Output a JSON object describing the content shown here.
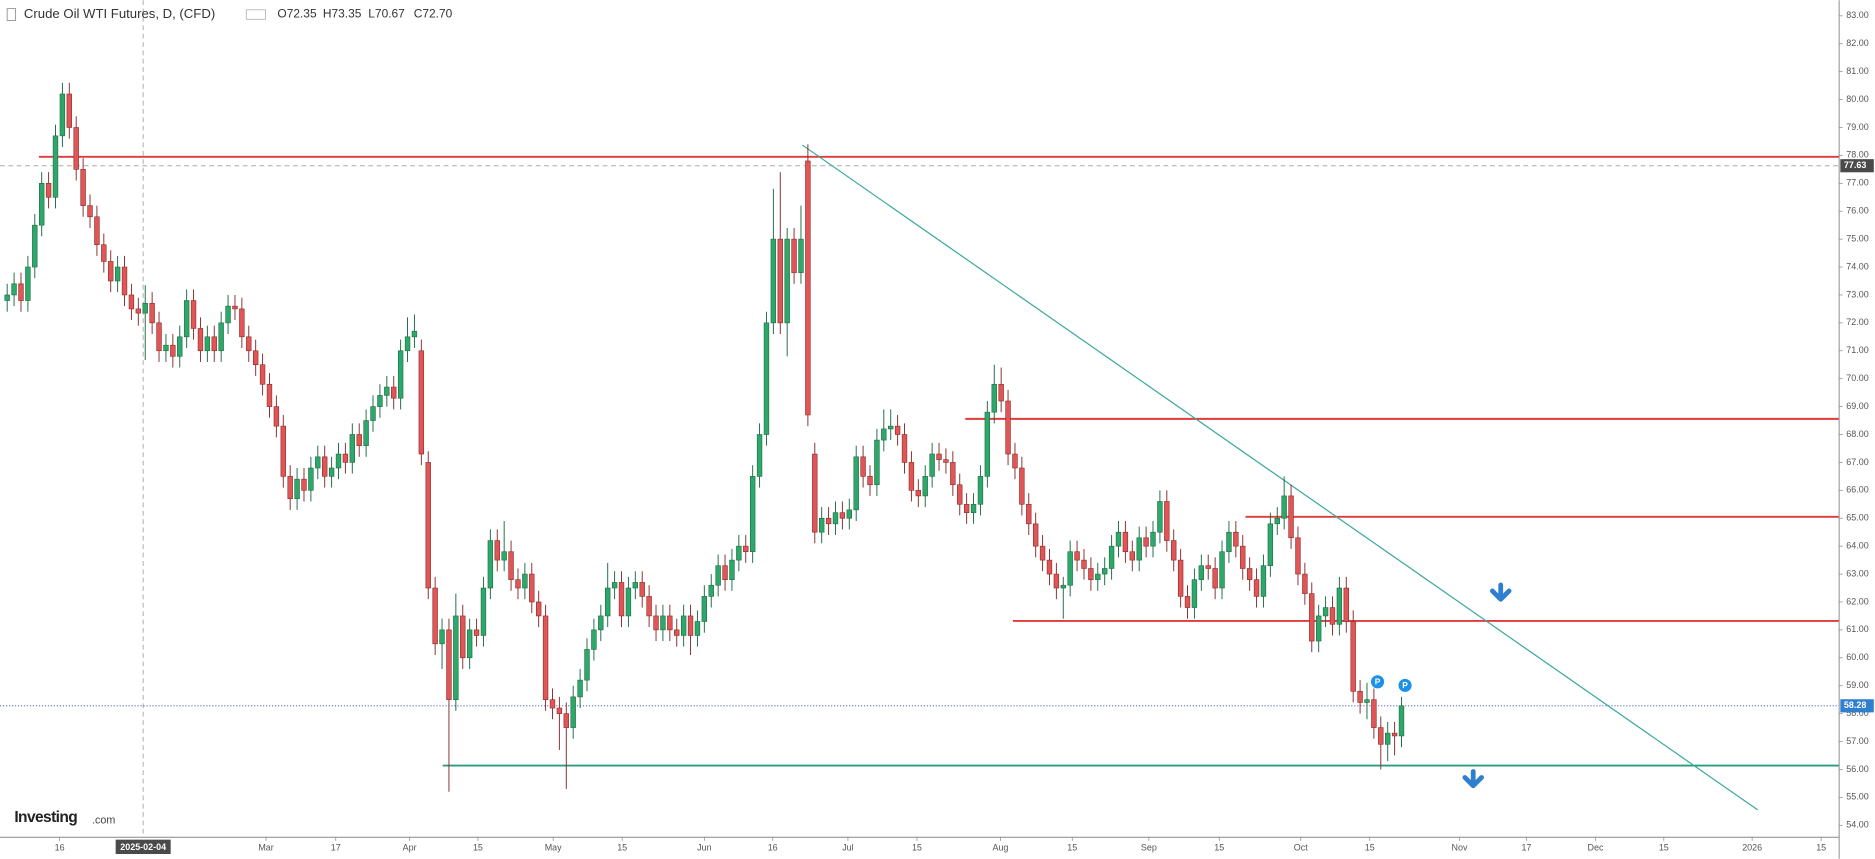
{
  "chart_data": {
    "type": "candlestick",
    "title": "Crude Oil WTI Futures, D, (CFD)",
    "ohlc_labels": [
      "O72.35",
      "H73.35",
      "L70.67",
      "C72.70"
    ],
    "logo": [
      "Investing",
      ".com"
    ],
    "up_color": "#2ea86a",
    "down_color": "#e05555",
    "xlim": [
      -1.04,
      265.4
    ],
    "ylim": [
      53.57,
      83.56
    ],
    "xticks": [
      {
        "value": 7.6,
        "label": "16"
      },
      {
        "value": 37.5,
        "label": "Mar"
      },
      {
        "value": 47.6,
        "label": "17"
      },
      {
        "value": 58.3,
        "label": "Apr"
      },
      {
        "value": 68.2,
        "label": "15"
      },
      {
        "value": 79.1,
        "label": "May"
      },
      {
        "value": 89.1,
        "label": "15"
      },
      {
        "value": 101,
        "label": "Jun"
      },
      {
        "value": 110.9,
        "label": "16"
      },
      {
        "value": 121.8,
        "label": "Jul"
      },
      {
        "value": 131.8,
        "label": "15"
      },
      {
        "value": 143.9,
        "label": "Aug"
      },
      {
        "value": 154.3,
        "label": "15"
      },
      {
        "value": 165.4,
        "label": "Sep"
      },
      {
        "value": 175.6,
        "label": "15"
      },
      {
        "value": 187.4,
        "label": "Oct"
      },
      {
        "value": 197.4,
        "label": "15"
      },
      {
        "value": 210.4,
        "label": "Nov"
      },
      {
        "value": 220.1,
        "label": "17"
      },
      {
        "value": 230.1,
        "label": "Dec"
      },
      {
        "value": 240,
        "label": "15"
      },
      {
        "value": 252.8,
        "label": "2026"
      },
      {
        "value": 262.8,
        "label": "15"
      }
    ],
    "yticks": [
      {
        "value": 54,
        "label": "54.00"
      },
      {
        "value": 55,
        "label": "55.00"
      },
      {
        "value": 56,
        "label": "56.00"
      },
      {
        "value": 57,
        "label": "57.00"
      },
      {
        "value": 58,
        "label": "58.00"
      },
      {
        "value": 59,
        "label": "59.00"
      },
      {
        "value": 60,
        "label": "60.00"
      },
      {
        "value": 61,
        "label": "61.00"
      },
      {
        "value": 62,
        "label": "62.00"
      },
      {
        "value": 63,
        "label": "63.00"
      },
      {
        "value": 64,
        "label": "64.00"
      },
      {
        "value": 65,
        "label": "65.00"
      },
      {
        "value": 66,
        "label": "66.00"
      },
      {
        "value": 67,
        "label": "67.00"
      },
      {
        "value": 68,
        "label": "68.00"
      },
      {
        "value": 69,
        "label": "69.00"
      },
      {
        "value": 70,
        "label": "70.00"
      },
      {
        "value": 71,
        "label": "71.00"
      },
      {
        "value": 72,
        "label": "72.00"
      },
      {
        "value": 73,
        "label": "73.00"
      },
      {
        "value": 74,
        "label": "74.00"
      },
      {
        "value": 75,
        "label": "75.00"
      },
      {
        "value": 76,
        "label": "76.00"
      },
      {
        "value": 77,
        "label": "77.00"
      },
      {
        "value": 78,
        "label": "78.00"
      },
      {
        "value": 79,
        "label": "79.00"
      },
      {
        "value": 80,
        "label": "80.00"
      },
      {
        "value": 81,
        "label": "81.00"
      },
      {
        "value": 82,
        "label": "82.00"
      },
      {
        "value": 83,
        "label": "83.00"
      }
    ],
    "crosshair": {
      "x": 19.7,
      "x_label": "2025-02-04",
      "price": 77.63
    },
    "last_price": 58.28,
    "hlines": [
      {
        "price": 77.95,
        "from": 4.6,
        "color": "#e03a3a"
      },
      {
        "price": 68.56,
        "from": 138.8,
        "color": "#e03a3a"
      },
      {
        "price": 65.05,
        "from": 179.4,
        "color": "#e03a3a"
      },
      {
        "price": 61.32,
        "from": 145.7,
        "color": "#e03a3a"
      },
      {
        "price": 56.14,
        "from": 63.1,
        "color": "#2a9d80"
      }
    ],
    "trendline": {
      "x": [
        115.2,
        253.6
      ],
      "y": [
        78.37,
        54.55
      ],
      "color": "#3aa89a"
    },
    "event_markers": [
      "P",
      "P"
    ],
    "candles": [
      [
        72.8,
        73.4,
        72.4,
        73.0
      ],
      [
        73.0,
        73.8,
        72.6,
        73.4
      ],
      [
        73.4,
        73.8,
        72.4,
        72.8
      ],
      [
        72.8,
        74.4,
        72.4,
        74.0
      ],
      [
        74.0,
        75.9,
        73.6,
        75.5
      ],
      [
        75.5,
        77.4,
        75.1,
        77.0
      ],
      [
        77.0,
        77.4,
        76.1,
        76.5
      ],
      [
        76.5,
        79.1,
        76.1,
        78.7
      ],
      [
        78.7,
        80.6,
        78.3,
        80.2
      ],
      [
        80.2,
        80.6,
        78.6,
        79.0
      ],
      [
        79.0,
        79.4,
        77.1,
        77.5
      ],
      [
        77.5,
        77.9,
        75.8,
        76.2
      ],
      [
        76.2,
        76.6,
        75.4,
        75.8
      ],
      [
        75.8,
        76.2,
        74.4,
        74.8
      ],
      [
        74.8,
        75.2,
        73.8,
        74.2
      ],
      [
        74.2,
        74.6,
        73.1,
        73.5
      ],
      [
        73.5,
        74.4,
        73.1,
        74.0
      ],
      [
        74.0,
        74.4,
        72.6,
        73.0
      ],
      [
        73.0,
        73.4,
        72.1,
        72.5
      ],
      [
        72.5,
        72.9,
        71.9,
        72.35
      ],
      [
        72.35,
        73.35,
        70.67,
        72.7
      ],
      [
        72.7,
        73.1,
        71.6,
        72.0
      ],
      [
        72.0,
        72.4,
        70.6,
        71.0
      ],
      [
        71.0,
        71.6,
        70.6,
        71.2
      ],
      [
        71.2,
        71.6,
        70.4,
        70.8
      ],
      [
        70.8,
        71.9,
        70.4,
        71.5
      ],
      [
        71.5,
        73.2,
        71.1,
        72.8
      ],
      [
        72.8,
        73.2,
        71.4,
        71.8
      ],
      [
        71.8,
        72.2,
        70.6,
        71.0
      ],
      [
        71.0,
        71.9,
        70.6,
        71.5
      ],
      [
        71.5,
        71.9,
        70.6,
        71.0
      ],
      [
        71.0,
        72.4,
        70.6,
        72.0
      ],
      [
        72.0,
        73.0,
        71.6,
        72.6
      ],
      [
        72.6,
        73.0,
        72.1,
        72.5
      ],
      [
        72.5,
        72.9,
        71.1,
        71.5
      ],
      [
        71.5,
        71.9,
        70.6,
        71.0
      ],
      [
        71.0,
        71.4,
        70.1,
        70.5
      ],
      [
        70.5,
        70.9,
        69.4,
        69.8
      ],
      [
        69.8,
        70.2,
        68.6,
        69.0
      ],
      [
        69.0,
        69.4,
        67.9,
        68.3
      ],
      [
        68.3,
        68.7,
        66.1,
        66.5
      ],
      [
        66.5,
        66.9,
        65.3,
        65.7
      ],
      [
        65.7,
        66.8,
        65.3,
        66.4
      ],
      [
        66.4,
        66.8,
        65.6,
        66.0
      ],
      [
        66.0,
        67.2,
        65.6,
        66.8
      ],
      [
        66.8,
        67.6,
        66.4,
        67.2
      ],
      [
        67.2,
        67.6,
        66.1,
        66.5
      ],
      [
        66.5,
        67.2,
        66.1,
        66.8
      ],
      [
        66.8,
        67.7,
        66.4,
        67.3
      ],
      [
        67.3,
        67.7,
        66.6,
        67.0
      ],
      [
        67.0,
        68.4,
        66.6,
        68.0
      ],
      [
        68.0,
        68.4,
        67.2,
        67.6
      ],
      [
        67.6,
        68.9,
        67.2,
        68.5
      ],
      [
        68.5,
        69.4,
        68.1,
        69.0
      ],
      [
        69.0,
        69.8,
        68.6,
        69.4
      ],
      [
        69.4,
        70.1,
        69.0,
        69.7
      ],
      [
        69.7,
        70.1,
        68.9,
        69.3
      ],
      [
        69.3,
        71.4,
        68.9,
        71.0
      ],
      [
        71.0,
        72.2,
        70.6,
        71.5
      ],
      [
        71.5,
        72.3,
        71.1,
        71.7
      ],
      [
        71.0,
        71.4,
        66.9,
        67.3
      ],
      [
        67.0,
        67.4,
        62.1,
        62.5
      ],
      [
        62.5,
        62.9,
        60.1,
        60.5
      ],
      [
        60.5,
        61.4,
        59.6,
        61.0
      ],
      [
        61.0,
        61.4,
        55.2,
        58.5
      ],
      [
        58.5,
        62.3,
        58.1,
        61.5
      ],
      [
        61.5,
        61.9,
        59.6,
        60.0
      ],
      [
        60.0,
        61.4,
        59.6,
        61.0
      ],
      [
        61.0,
        61.4,
        60.4,
        60.8
      ],
      [
        60.8,
        62.9,
        60.4,
        62.5
      ],
      [
        62.5,
        64.6,
        62.1,
        64.2
      ],
      [
        64.2,
        64.6,
        63.1,
        63.5
      ],
      [
        63.5,
        64.9,
        63.1,
        63.8
      ],
      [
        63.8,
        64.2,
        62.4,
        62.8
      ],
      [
        62.8,
        63.2,
        62.1,
        62.5
      ],
      [
        62.5,
        63.4,
        62.1,
        63.0
      ],
      [
        63.0,
        63.4,
        61.6,
        62.0
      ],
      [
        62.0,
        62.4,
        61.1,
        61.5
      ],
      [
        61.5,
        61.9,
        58.1,
        58.5
      ],
      [
        58.5,
        58.9,
        57.8,
        58.2
      ],
      [
        58.2,
        58.6,
        56.7,
        58.0
      ],
      [
        58.0,
        58.4,
        55.3,
        57.5
      ],
      [
        57.5,
        59.0,
        57.1,
        58.6
      ],
      [
        58.6,
        59.6,
        58.2,
        59.2
      ],
      [
        59.2,
        60.7,
        58.8,
        60.3
      ],
      [
        60.3,
        61.4,
        59.9,
        61.0
      ],
      [
        61.0,
        61.9,
        60.6,
        61.5
      ],
      [
        61.5,
        63.4,
        61.1,
        62.5
      ],
      [
        62.5,
        63.1,
        62.1,
        62.7
      ],
      [
        62.7,
        63.1,
        61.1,
        61.5
      ],
      [
        61.5,
        62.9,
        61.1,
        62.5
      ],
      [
        62.5,
        63.1,
        62.1,
        62.7
      ],
      [
        62.7,
        63.1,
        61.8,
        62.2
      ],
      [
        62.2,
        62.6,
        61.1,
        61.5
      ],
      [
        61.5,
        61.9,
        60.6,
        61.0
      ],
      [
        61.0,
        61.9,
        60.6,
        61.5
      ],
      [
        61.5,
        61.9,
        60.6,
        61.0
      ],
      [
        61.0,
        61.4,
        60.4,
        60.8
      ],
      [
        60.8,
        61.9,
        60.4,
        61.5
      ],
      [
        61.5,
        61.9,
        60.1,
        60.8
      ],
      [
        60.8,
        61.7,
        60.4,
        61.3
      ],
      [
        61.3,
        62.6,
        60.9,
        62.2
      ],
      [
        62.2,
        63.0,
        61.8,
        62.6
      ],
      [
        62.6,
        63.7,
        62.2,
        63.3
      ],
      [
        63.3,
        63.7,
        62.4,
        62.8
      ],
      [
        62.8,
        63.9,
        62.4,
        63.5
      ],
      [
        63.5,
        64.4,
        63.1,
        64.0
      ],
      [
        64.0,
        64.4,
        63.4,
        63.8
      ],
      [
        63.8,
        66.9,
        63.4,
        66.5
      ],
      [
        66.5,
        68.4,
        66.1,
        68.0
      ],
      [
        68.0,
        72.4,
        67.6,
        72.0
      ],
      [
        72.0,
        76.8,
        71.6,
        75.0
      ],
      [
        75.0,
        77.4,
        71.6,
        72.0
      ],
      [
        72.0,
        75.4,
        70.8,
        75.0
      ],
      [
        75.0,
        75.4,
        73.4,
        73.8
      ],
      [
        73.8,
        76.2,
        73.4,
        75.0
      ],
      [
        77.8,
        78.4,
        68.3,
        68.7
      ],
      [
        67.3,
        67.7,
        64.1,
        64.5
      ],
      [
        64.5,
        65.4,
        64.1,
        65.0
      ],
      [
        65.0,
        65.4,
        64.4,
        64.8
      ],
      [
        64.8,
        65.6,
        64.4,
        65.2
      ],
      [
        65.2,
        65.6,
        64.6,
        65.0
      ],
      [
        65.0,
        65.7,
        64.6,
        65.3
      ],
      [
        65.3,
        67.6,
        64.9,
        67.2
      ],
      [
        67.2,
        67.6,
        66.1,
        66.5
      ],
      [
        66.5,
        66.9,
        65.8,
        66.2
      ],
      [
        66.2,
        68.2,
        65.8,
        67.8
      ],
      [
        67.8,
        68.9,
        67.4,
        68.2
      ],
      [
        68.2,
        68.9,
        67.8,
        68.3
      ],
      [
        68.3,
        68.7,
        67.6,
        68.0
      ],
      [
        68.0,
        68.4,
        66.6,
        67.0
      ],
      [
        67.0,
        67.4,
        65.6,
        66.0
      ],
      [
        66.0,
        66.4,
        65.4,
        65.8
      ],
      [
        65.8,
        66.9,
        65.4,
        66.5
      ],
      [
        66.5,
        67.7,
        66.1,
        67.3
      ],
      [
        67.3,
        67.7,
        66.7,
        67.1
      ],
      [
        67.1,
        67.5,
        66.6,
        67.0
      ],
      [
        67.0,
        67.4,
        65.8,
        66.2
      ],
      [
        66.2,
        66.6,
        65.1,
        65.5
      ],
      [
        65.5,
        65.9,
        64.8,
        65.2
      ],
      [
        65.2,
        65.9,
        64.8,
        65.5
      ],
      [
        65.5,
        66.9,
        65.1,
        66.5
      ],
      [
        66.5,
        69.2,
        66.1,
        68.8
      ],
      [
        68.8,
        70.5,
        68.4,
        69.8
      ],
      [
        69.8,
        70.4,
        68.8,
        69.2
      ],
      [
        69.2,
        69.6,
        66.9,
        67.3
      ],
      [
        67.3,
        67.7,
        66.4,
        66.8
      ],
      [
        66.8,
        67.2,
        65.1,
        65.5
      ],
      [
        65.5,
        65.9,
        64.4,
        64.8
      ],
      [
        64.8,
        65.2,
        63.6,
        64.0
      ],
      [
        64.0,
        64.4,
        63.1,
        63.5
      ],
      [
        63.5,
        63.9,
        62.6,
        63.0
      ],
      [
        63.0,
        63.4,
        62.1,
        62.5
      ],
      [
        62.5,
        62.9,
        61.4,
        62.6
      ],
      [
        62.6,
        64.2,
        62.2,
        63.8
      ],
      [
        63.8,
        64.2,
        63.1,
        63.5
      ],
      [
        63.5,
        63.9,
        62.8,
        63.2
      ],
      [
        63.2,
        63.6,
        62.4,
        62.8
      ],
      [
        62.8,
        63.4,
        62.4,
        63.0
      ],
      [
        63.0,
        63.6,
        62.6,
        63.2
      ],
      [
        63.2,
        64.4,
        62.8,
        64.0
      ],
      [
        64.0,
        64.9,
        63.6,
        64.5
      ],
      [
        64.5,
        64.9,
        63.4,
        63.8
      ],
      [
        63.8,
        64.2,
        63.1,
        63.5
      ],
      [
        63.5,
        64.7,
        63.1,
        64.3
      ],
      [
        64.3,
        64.7,
        63.6,
        64.0
      ],
      [
        64.0,
        64.9,
        63.6,
        64.5
      ],
      [
        64.5,
        66.0,
        64.1,
        65.6
      ],
      [
        65.6,
        66.0,
        63.8,
        64.2
      ],
      [
        64.2,
        64.6,
        63.1,
        63.5
      ],
      [
        63.5,
        63.9,
        61.8,
        62.2
      ],
      [
        62.2,
        62.6,
        61.4,
        61.8
      ],
      [
        61.8,
        63.2,
        61.4,
        62.8
      ],
      [
        62.8,
        63.7,
        62.4,
        63.3
      ],
      [
        63.3,
        63.7,
        62.8,
        63.2
      ],
      [
        63.2,
        63.6,
        62.1,
        62.5
      ],
      [
        62.5,
        64.2,
        62.1,
        63.8
      ],
      [
        63.8,
        64.9,
        63.4,
        64.5
      ],
      [
        64.5,
        64.9,
        63.6,
        64.0
      ],
      [
        64.0,
        64.4,
        62.8,
        63.2
      ],
      [
        63.2,
        63.6,
        62.4,
        62.8
      ],
      [
        62.8,
        63.2,
        61.8,
        62.2
      ],
      [
        62.2,
        63.7,
        61.8,
        63.3
      ],
      [
        63.3,
        65.2,
        62.9,
        64.8
      ],
      [
        64.8,
        65.4,
        64.4,
        65.0
      ],
      [
        65.0,
        66.5,
        64.6,
        65.8
      ],
      [
        65.8,
        66.2,
        63.9,
        64.3
      ],
      [
        64.3,
        64.7,
        62.6,
        63.0
      ],
      [
        63.0,
        63.4,
        61.9,
        62.3
      ],
      [
        62.3,
        62.7,
        60.2,
        60.6
      ],
      [
        60.6,
        61.9,
        60.2,
        61.5
      ],
      [
        61.5,
        62.2,
        61.1,
        61.8
      ],
      [
        61.8,
        62.2,
        60.8,
        61.2
      ],
      [
        61.2,
        62.9,
        60.8,
        62.5
      ],
      [
        62.5,
        62.9,
        60.9,
        61.3
      ],
      [
        61.3,
        61.7,
        58.4,
        58.8
      ],
      [
        58.8,
        59.2,
        58.0,
        58.4
      ],
      [
        58.4,
        59.1,
        57.8,
        58.5
      ],
      [
        58.5,
        58.9,
        57.1,
        57.5
      ],
      [
        57.5,
        57.9,
        56.0,
        56.9
      ],
      [
        56.9,
        57.7,
        56.3,
        57.3
      ],
      [
        57.3,
        57.7,
        56.5,
        57.2
      ],
      [
        57.2,
        58.6,
        56.8,
        58.28
      ]
    ]
  }
}
